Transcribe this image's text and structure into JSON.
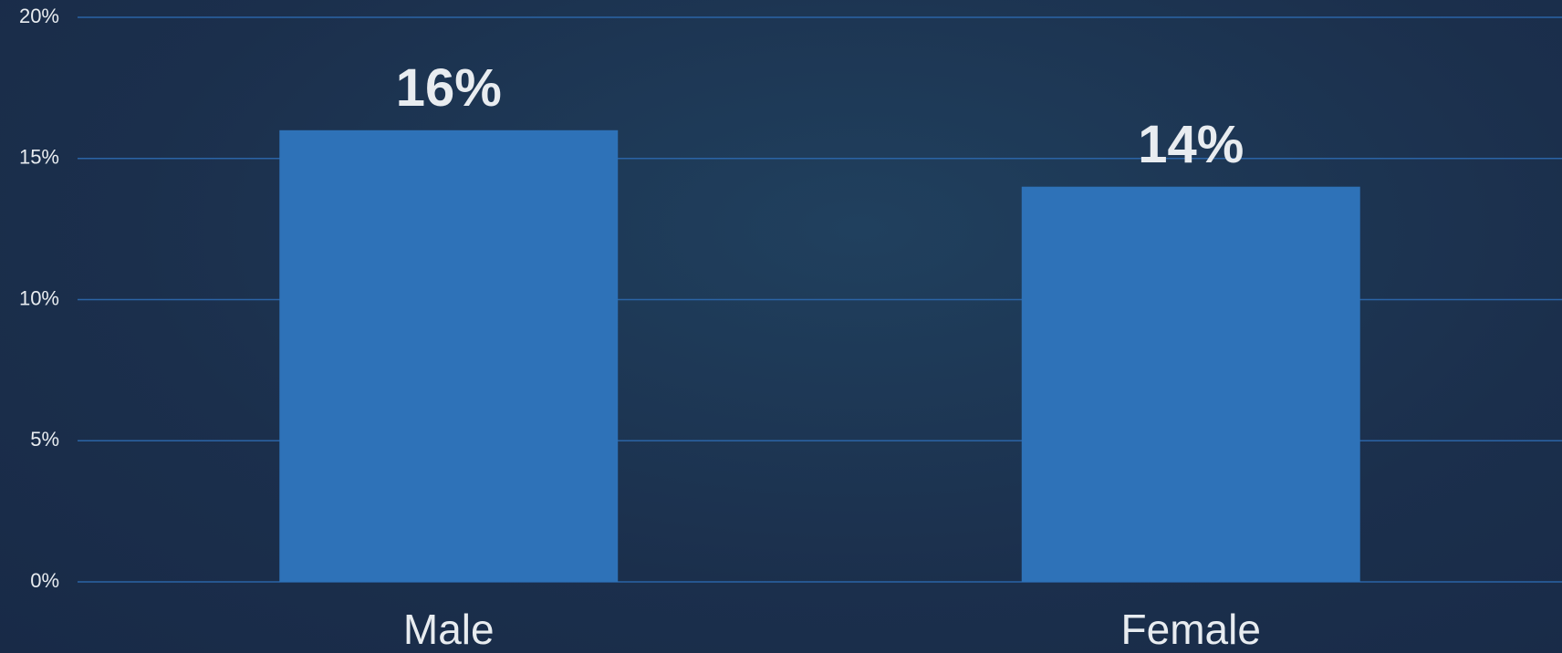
{
  "chart_data": {
    "type": "bar",
    "categories": [
      "Male",
      "Female"
    ],
    "values": [
      16,
      14
    ],
    "value_labels": [
      "16%",
      "14%"
    ],
    "color": "#2e72b8",
    "ylim": [
      0,
      20
    ],
    "yticks": [
      {
        "value": 0,
        "label": "0%"
      },
      {
        "value": 5,
        "label": "5%"
      },
      {
        "value": 10,
        "label": "10%"
      },
      {
        "value": 15,
        "label": "15%"
      },
      {
        "value": 20,
        "label": "20%"
      }
    ],
    "grid": true
  }
}
